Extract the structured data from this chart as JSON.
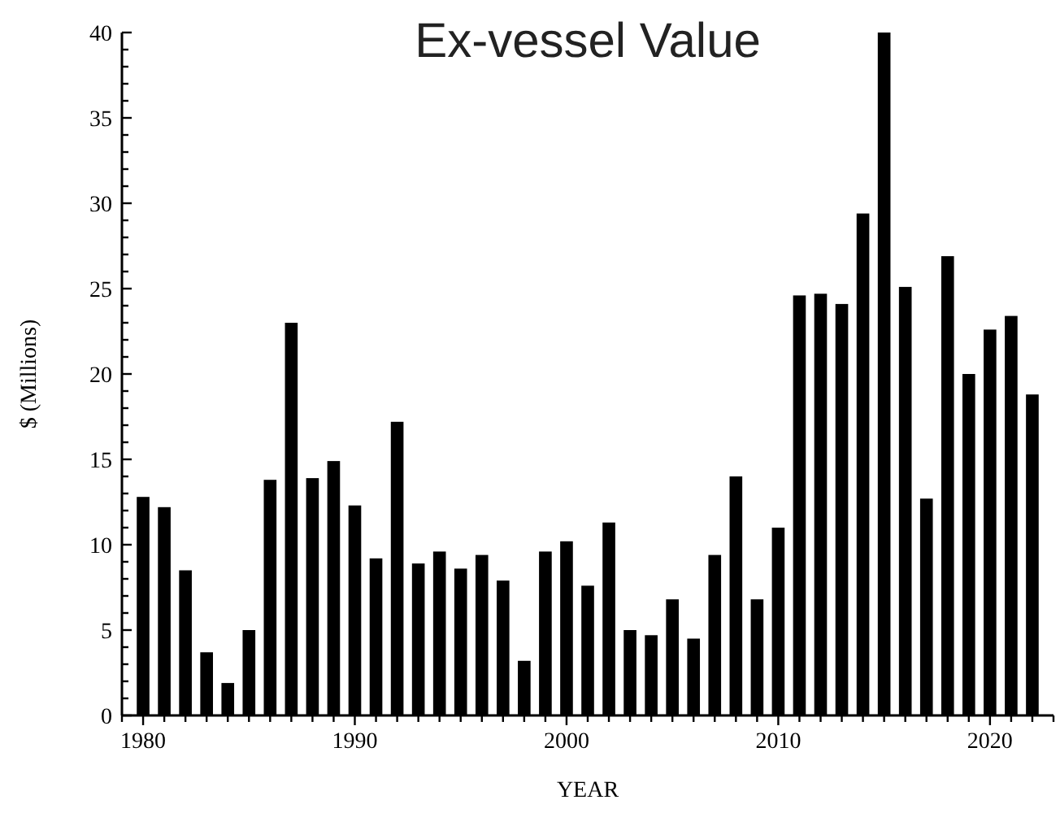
{
  "chart_data": {
    "type": "bar",
    "title": "Ex-vessel Value",
    "xlabel": "YEAR",
    "ylabel": "$ (Millions)",
    "x": [
      1980,
      1981,
      1982,
      1983,
      1984,
      1985,
      1986,
      1987,
      1988,
      1989,
      1990,
      1991,
      1992,
      1993,
      1994,
      1995,
      1996,
      1997,
      1998,
      1999,
      2000,
      2001,
      2002,
      2003,
      2004,
      2005,
      2006,
      2007,
      2008,
      2009,
      2010,
      2011,
      2012,
      2013,
      2014,
      2015,
      2016,
      2017,
      2018,
      2019,
      2020,
      2021,
      2022
    ],
    "values": [
      12.8,
      12.2,
      8.5,
      3.7,
      1.9,
      5.0,
      13.8,
      23.0,
      13.9,
      14.9,
      12.3,
      9.2,
      17.2,
      8.9,
      9.6,
      8.6,
      9.4,
      7.9,
      3.2,
      9.6,
      10.2,
      7.6,
      11.3,
      5.0,
      4.7,
      6.8,
      4.5,
      9.4,
      14.0,
      6.8,
      11.0,
      24.6,
      24.7,
      24.1,
      29.4,
      40,
      25.1,
      12.7,
      26.9,
      20.0,
      22.6,
      23.4,
      18.8
    ],
    "color": "#000000",
    "xlim": [
      1979,
      2023
    ],
    "ylim": [
      0,
      40
    ],
    "xticks": [
      {
        "value": 1979,
        "label": null
      },
      1980,
      {
        "value": 1981,
        "label": null
      },
      {
        "value": 1982,
        "label": null
      },
      {
        "value": 1983,
        "label": null
      },
      {
        "value": 1984,
        "label": null
      },
      {
        "value": 1985,
        "label": null
      },
      {
        "value": 1986,
        "label": null
      },
      {
        "value": 1987,
        "label": null
      },
      {
        "value": 1988,
        "label": null
      },
      {
        "value": 1989,
        "label": null
      },
      1990,
      {
        "value": 1991,
        "label": null
      },
      {
        "value": 1992,
        "label": null
      },
      {
        "value": 1993,
        "label": null
      },
      {
        "value": 1994,
        "label": null
      },
      {
        "value": 1995,
        "label": null
      },
      {
        "value": 1996,
        "label": null
      },
      {
        "value": 1997,
        "label": null
      },
      {
        "value": 1998,
        "label": null
      },
      {
        "value": 1999,
        "label": null
      },
      2000,
      {
        "value": 2001,
        "label": null
      },
      {
        "value": 2002,
        "label": null
      },
      {
        "value": 2003,
        "label": null
      },
      {
        "value": 2004,
        "label": null
      },
      {
        "value": 2005,
        "label": null
      },
      {
        "value": 2006,
        "label": null
      },
      {
        "value": 2007,
        "label": null
      },
      {
        "value": 2008,
        "label": null
      },
      {
        "value": 2009,
        "label": null
      },
      2010,
      {
        "value": 2011,
        "label": null
      },
      {
        "value": 2012,
        "label": null
      },
      {
        "value": 2013,
        "label": null
      },
      {
        "value": 2014,
        "label": null
      },
      {
        "value": 2015,
        "label": null
      },
      {
        "value": 2016,
        "label": null
      },
      {
        "value": 2017,
        "label": null
      },
      {
        "value": 2018,
        "label": null
      },
      {
        "value": 2019,
        "label": null
      },
      2020,
      {
        "value": 2021,
        "label": null
      },
      {
        "value": 2022,
        "label": null
      },
      {
        "value": 2023,
        "label": null
      }
    ],
    "yticks": [
      0,
      {
        "value": 1,
        "label": null
      },
      {
        "value": 2,
        "label": null
      },
      {
        "value": 3,
        "label": null
      },
      {
        "value": 4,
        "label": null
      },
      5,
      {
        "value": 6,
        "label": null
      },
      {
        "value": 7,
        "label": null
      },
      {
        "value": 8,
        "label": null
      },
      {
        "value": 9,
        "label": null
      },
      10,
      {
        "value": 11,
        "label": null
      },
      {
        "value": 12,
        "label": null
      },
      {
        "value": 13,
        "label": null
      },
      {
        "value": 14,
        "label": null
      },
      15,
      {
        "value": 16,
        "label": null
      },
      {
        "value": 17,
        "label": null
      },
      {
        "value": 18,
        "label": null
      },
      {
        "value": 19,
        "label": null
      },
      20,
      {
        "value": 21,
        "label": null
      },
      {
        "value": 22,
        "label": null
      },
      {
        "value": 23,
        "label": null
      },
      {
        "value": 24,
        "label": null
      },
      25,
      {
        "value": 26,
        "label": null
      },
      {
        "value": 27,
        "label": null
      },
      {
        "value": 28,
        "label": null
      },
      {
        "value": 29,
        "label": null
      },
      30,
      {
        "value": 31,
        "label": null
      },
      {
        "value": 32,
        "label": null
      },
      {
        "value": 33,
        "label": null
      },
      {
        "value": 34,
        "label": null
      },
      35,
      {
        "value": 36,
        "label": null
      },
      {
        "value": 37,
        "label": null
      },
      {
        "value": 38,
        "label": null
      },
      {
        "value": 39,
        "label": null
      },
      40
    ]
  }
}
